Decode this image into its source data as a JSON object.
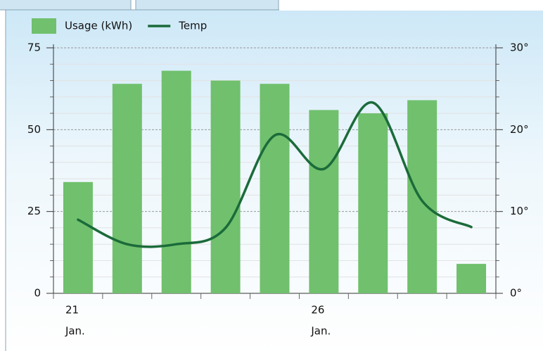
{
  "chart_data": {
    "type": "bar_line",
    "categories": [
      [
        "21",
        "Jan."
      ],
      null,
      null,
      null,
      null,
      [
        "26",
        "Jan."
      ],
      null,
      null,
      null
    ],
    "series": [
      {
        "name": "Usage (kWh)",
        "type": "bar",
        "color": "#70c06d",
        "values": [
          34,
          64,
          68,
          65,
          64,
          56,
          55,
          59,
          9
        ]
      },
      {
        "name": "Temp",
        "type": "line",
        "axis": "y2",
        "color": "#1b6b3a",
        "values": [
          9,
          6,
          6,
          8,
          19.3,
          15.2,
          23.3,
          11.3,
          8.1
        ]
      }
    ],
    "ylim": [
      0,
      75
    ],
    "yticks": [
      0,
      25,
      50,
      75
    ],
    "yminorticks": [
      5,
      10,
      15,
      20,
      30,
      35,
      40,
      45,
      55,
      60,
      65,
      70
    ],
    "y2lim": [
      0,
      30
    ],
    "y2ticks": [
      {
        "value": 0,
        "label": "0°"
      },
      {
        "value": 10,
        "label": "10°"
      },
      {
        "value": 20,
        "label": "20°"
      },
      {
        "value": 30,
        "label": "30°"
      }
    ],
    "grid": true,
    "legend": "top-left"
  }
}
